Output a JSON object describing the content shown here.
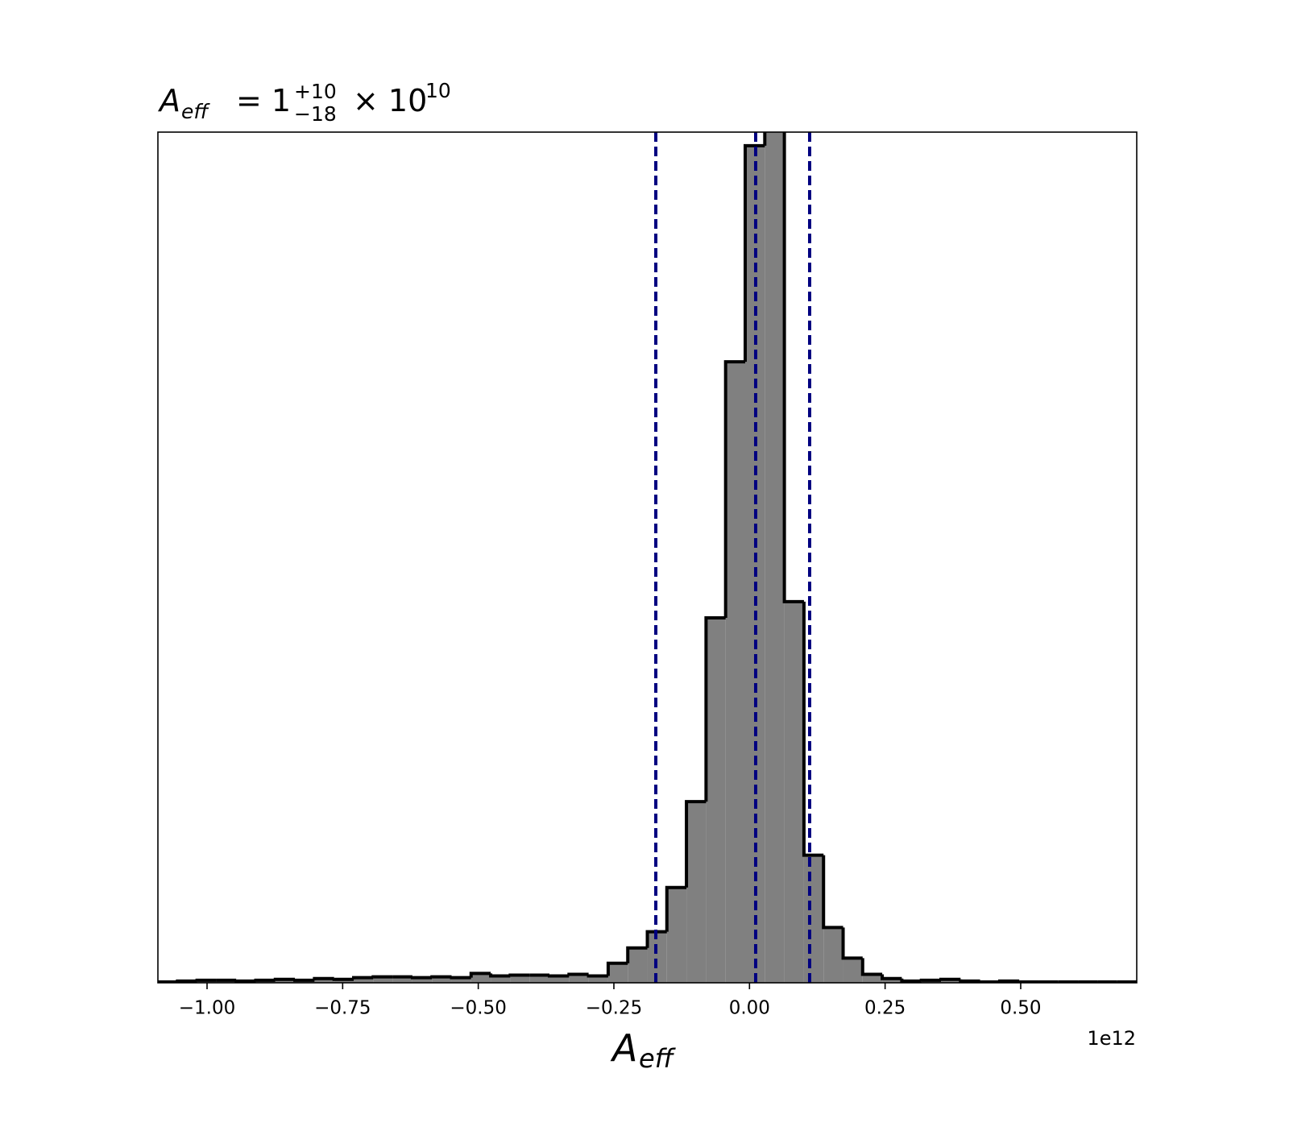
{
  "chart_data": {
    "type": "histogram",
    "title": {
      "symbol": "A",
      "symbol_sub": "eff",
      "equals": "= 1",
      "upper": "+10",
      "lower": "−18",
      "times": "× 10",
      "exponent": "10"
    },
    "x_label": {
      "symbol": "A",
      "symbol_sub": "eff"
    },
    "x_offset_label": "1e12",
    "bins": [
      -1.0906,
      -1.0545,
      -1.0184,
      -0.9823,
      -0.9462,
      -0.9101,
      -0.8741,
      -0.838,
      -0.8019,
      -0.7658,
      -0.7297,
      -0.6936,
      -0.6575,
      -0.6214,
      -0.5853,
      -0.5492,
      -0.5132,
      -0.4771,
      -0.441,
      -0.4049,
      -0.3688,
      -0.3327,
      -0.2966,
      -0.2605,
      -0.2244,
      -0.1883,
      -0.1523,
      -0.1162,
      -0.0801,
      -0.044,
      -0.0079,
      0.0282,
      0.0643,
      0.1004,
      0.1365,
      0.1726,
      0.2086,
      0.2447,
      0.2808,
      0.3169,
      0.353,
      0.3891,
      0.4252,
      0.4613,
      0.4974,
      0.5335,
      0.5695,
      0.6056,
      0.6417,
      0.6778,
      0.7139
    ],
    "values": [
      0.1,
      0.2,
      0.3,
      0.3,
      0.2,
      0.3,
      0.4,
      0.3,
      0.5,
      0.4,
      0.6,
      0.7,
      0.7,
      0.6,
      0.7,
      0.6,
      1.1,
      0.8,
      0.9,
      0.9,
      0.8,
      1.0,
      0.8,
      2.3,
      4.1,
      6.0,
      11.2,
      21.3,
      42.9,
      73.0,
      98.4,
      104,
      44.8,
      15.0,
      6.5,
      2.9,
      1.0,
      0.5,
      0.2,
      0.3,
      0.4,
      0.2,
      0.1,
      0.2,
      0.1,
      0.1,
      0.1,
      0.1,
      0.1,
      0.1
    ],
    "color": "#808080",
    "edge_color": "#000000",
    "xlim": [
      -1.0906,
      0.7139
    ],
    "ylim": [
      0,
      100
    ],
    "xticks": [
      {
        "value": -1.0,
        "label": "−1.00"
      },
      {
        "value": -0.75,
        "label": "−0.75"
      },
      {
        "value": -0.5,
        "label": "−0.50"
      },
      {
        "value": -0.25,
        "label": "−0.25"
      },
      {
        "value": 0.0,
        "label": "0.00"
      },
      {
        "value": 0.25,
        "label": "0.25"
      },
      {
        "value": 0.5,
        "label": "0.50"
      }
    ],
    "vlines": [
      {
        "value": -0.1727
      },
      {
        "value": 0.0114
      },
      {
        "value": 0.1109
      }
    ],
    "vline_color": "#000080"
  }
}
